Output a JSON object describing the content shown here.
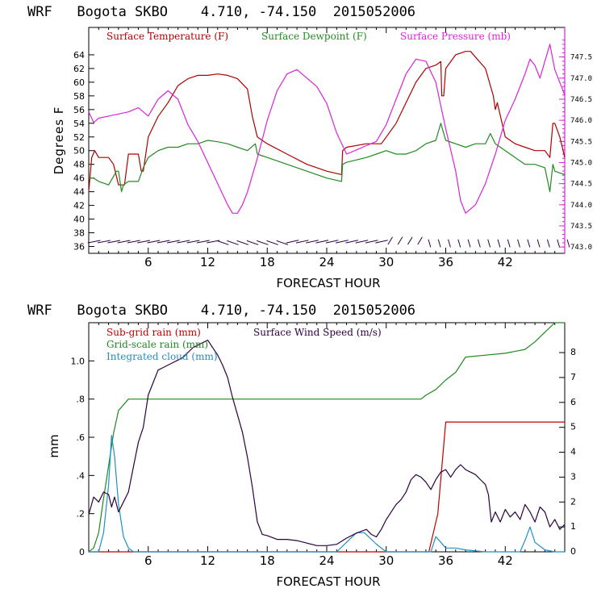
{
  "colors": {
    "temperature": "#b00000",
    "dewpoint": "#228b22",
    "pressure": "#dd22dd",
    "subgrid": "#c00000",
    "gridscale": "#1f8a1f",
    "cloud": "#1e90c8",
    "wind": "#2b0040",
    "axis": "#000000"
  },
  "chart_data": [
    {
      "type": "line",
      "header": "WRF   Bogota SKBO    4.710, -74.150  2015052006",
      "xlabel": "FORECAST HOUR",
      "ylabel": "Degrees F",
      "xlim": [
        0,
        48
      ],
      "ylim": [
        35,
        68
      ],
      "y2lim": [
        742.85,
        748.2
      ],
      "xticks": [
        6,
        12,
        18,
        24,
        30,
        36,
        42
      ],
      "yticks": [
        36,
        38,
        40,
        42,
        44,
        46,
        48,
        50,
        52,
        54,
        56,
        58,
        60,
        62,
        64
      ],
      "y2ticks": [
        "743.0",
        "743.5",
        "744.0",
        "744.5",
        "745.0",
        "745.5",
        "746.0",
        "746.5",
        "747.0",
        "747.5"
      ],
      "legend": [
        "Surface Temperature (F)",
        "Surface Dewpoint (F)",
        "Surface Pressure (mb)"
      ],
      "series": [
        {
          "name": "Surface Temperature (F)",
          "axis": "left",
          "x": [
            0,
            0.3,
            0.6,
            1,
            1.5,
            2,
            2.5,
            3,
            3.3,
            3.6,
            4,
            5,
            5.3,
            5.5,
            6,
            7,
            8,
            9,
            10,
            11,
            12,
            13,
            14,
            15,
            16,
            16.5,
            17,
            18,
            20,
            22,
            24,
            25.5,
            25.6,
            26,
            28,
            29,
            29.5,
            30,
            31,
            32,
            33,
            34,
            35,
            35.5,
            35.6,
            35.8,
            36,
            37,
            38,
            38.5,
            40,
            40.8,
            41,
            41.2,
            42,
            43,
            44,
            45,
            46,
            46.5,
            46.8,
            47,
            47.5,
            48
          ],
          "y": [
            44,
            49,
            50,
            49,
            49,
            49,
            48,
            45,
            45,
            45,
            49.5,
            49.5,
            47,
            47,
            52,
            55,
            57,
            59.5,
            60.5,
            61,
            61,
            61.2,
            61,
            60.5,
            59,
            55,
            52,
            51,
            49.5,
            48,
            47,
            46.5,
            50,
            50.5,
            51,
            51,
            51,
            52,
            54,
            57,
            60,
            62,
            62.5,
            63,
            58,
            58,
            62,
            64,
            64.5,
            64.5,
            62,
            58,
            56,
            57,
            52,
            51,
            50.5,
            50,
            50,
            49,
            54,
            54,
            52,
            49
          ]
        },
        {
          "name": "Surface Dewpoint (F)",
          "axis": "left",
          "x": [
            0,
            0.5,
            1,
            2,
            2.8,
            3,
            3.3,
            3.5,
            4,
            5,
            5.5,
            6,
            7,
            8,
            9,
            10,
            11,
            12,
            13,
            14,
            15,
            16,
            16.8,
            17,
            18,
            20,
            22,
            24,
            25.5,
            25.6,
            26,
            28,
            29,
            30,
            31,
            32,
            33,
            34,
            35,
            35.5,
            36,
            37,
            38,
            39,
            40,
            40.5,
            41,
            42,
            43,
            44,
            45,
            46,
            46.5,
            46.8,
            47,
            48
          ],
          "y": [
            46,
            46,
            45.5,
            45,
            47,
            47,
            44,
            45,
            45.5,
            45.5,
            47.5,
            49,
            50,
            50.5,
            50.5,
            51,
            51,
            51.5,
            51.3,
            51,
            50.5,
            50,
            51,
            49.5,
            49,
            48,
            47,
            46,
            45.5,
            48,
            48.3,
            49,
            49.5,
            50,
            49.5,
            49.5,
            50,
            51,
            51.5,
            54,
            51.5,
            51,
            50.5,
            51,
            51,
            52.5,
            51,
            50,
            49,
            48,
            48,
            47.5,
            44,
            48,
            47,
            46.5
          ]
        },
        {
          "name": "Surface Pressure (mb)",
          "axis": "right",
          "x": [
            0,
            0.5,
            1,
            2,
            3,
            4,
            5,
            6,
            7,
            8,
            9,
            10,
            11,
            12,
            13,
            14,
            14.5,
            15,
            15.5,
            16,
            17,
            18,
            19,
            20,
            21,
            22,
            23,
            24,
            25,
            26,
            27,
            28,
            29,
            30,
            31,
            32,
            33,
            34,
            35,
            36,
            37,
            37.5,
            38,
            39,
            40,
            41,
            42,
            43,
            44,
            44.5,
            45,
            45.5,
            46,
            46.5,
            47,
            48
          ],
          "y": [
            746.2,
            745.95,
            746.05,
            746.1,
            746.15,
            746.2,
            746.3,
            746.1,
            746.5,
            746.7,
            746.5,
            745.9,
            745.5,
            745.0,
            744.5,
            744.0,
            743.8,
            743.8,
            744.0,
            744.3,
            745.1,
            746.0,
            746.7,
            747.1,
            747.2,
            747.0,
            746.8,
            746.4,
            745.7,
            745.2,
            745.3,
            745.4,
            745.5,
            745.9,
            746.5,
            747.1,
            747.45,
            747.4,
            746.9,
            745.8,
            744.8,
            744.1,
            743.8,
            744.0,
            744.5,
            745.2,
            746.0,
            746.5,
            747.1,
            747.45,
            747.3,
            747.0,
            747.4,
            747.8,
            747.2,
            746.6
          ]
        }
      ]
    },
    {
      "type": "line",
      "header": "WRF   Bogota SKBO    4.710, -74.150  2015052006",
      "xlabel": "FORECAST HOUR",
      "ylabel": "mm",
      "xlim": [
        0,
        48
      ],
      "ylim": [
        0,
        1.2
      ],
      "y2lim": [
        0,
        9.2
      ],
      "xticks": [
        6,
        12,
        18,
        24,
        30,
        36,
        42
      ],
      "yticks": [
        0,
        0.2,
        0.4,
        0.6,
        0.8,
        1.0
      ],
      "ytick_labels": [
        "0",
        ".2",
        ".4",
        ".6",
        ".8",
        "1.0"
      ],
      "y2ticks": [
        "0",
        "1",
        "2",
        "3",
        "4",
        "5",
        "6",
        "7",
        "8"
      ],
      "legend": [
        "Sub-grid rain (mm)",
        "Grid-scale rain (mm)",
        "Integrated cloud (mm)",
        "Surface Wind Speed (m/s)"
      ],
      "series": [
        {
          "name": "Sub-grid rain (mm)",
          "axis": "left",
          "x": [
            0,
            34.3,
            35.2,
            36,
            48
          ],
          "y": [
            0,
            0,
            0.2,
            0.68,
            0.68
          ]
        },
        {
          "name": "Grid-scale rain (mm)",
          "axis": "left",
          "x": [
            0,
            0.5,
            1,
            1.5,
            2,
            2.5,
            3,
            4,
            20,
            30,
            33.5,
            34,
            35,
            36,
            37,
            38,
            40,
            42,
            44,
            45,
            46,
            47,
            48
          ],
          "y": [
            0,
            0.02,
            0.1,
            0.28,
            0.45,
            0.62,
            0.74,
            0.8,
            0.8,
            0.8,
            0.8,
            0.82,
            0.85,
            0.9,
            0.94,
            1.02,
            1.03,
            1.04,
            1.06,
            1.1,
            1.15,
            1.2,
            1.2
          ]
        },
        {
          "name": "Integrated cloud (mm)",
          "axis": "left",
          "x": [
            0,
            1,
            1.5,
            2,
            2.3,
            2.6,
            3,
            3.5,
            4,
            4.5,
            25,
            26,
            27,
            27.8,
            29,
            30,
            34.5,
            35,
            35.5,
            36,
            37,
            38,
            40,
            43.5,
            44,
            44.5,
            45,
            46,
            47,
            48
          ],
          "y": [
            0,
            0,
            0.1,
            0.35,
            0.61,
            0.5,
            0.25,
            0.08,
            0.02,
            0,
            0,
            0.05,
            0.1,
            0.1,
            0.04,
            0,
            0,
            0.08,
            0.05,
            0.02,
            0.02,
            0.01,
            0,
            0,
            0.06,
            0.13,
            0.05,
            0.01,
            0,
            0
          ]
        },
        {
          "name": "Surface Wind Speed (m/s)",
          "axis": "right",
          "x": [
            0,
            0.5,
            1,
            1.5,
            2,
            2.3,
            2.6,
            3,
            3.5,
            4,
            4.5,
            5,
            5.5,
            6,
            6.5,
            7,
            7.5,
            8,
            8.5,
            9,
            9.5,
            10,
            10.5,
            11,
            11.5,
            12,
            12.5,
            13,
            13.5,
            14,
            14.5,
            15,
            15.5,
            16,
            16.5,
            17,
            17.5,
            18,
            19,
            20,
            21,
            22,
            23,
            24,
            25,
            26,
            27,
            28,
            28.5,
            29,
            29.5,
            30,
            30.5,
            31,
            31.5,
            32,
            32.5,
            33,
            33.5,
            34,
            34.5,
            35,
            35.5,
            36,
            36.5,
            37,
            37.5,
            38,
            38.5,
            39,
            39.5,
            40,
            40.3,
            40.6,
            41,
            41.5,
            42,
            42.5,
            43,
            43.5,
            44,
            44.5,
            45,
            45.5,
            46,
            46.5,
            47,
            47.5,
            48
          ],
          "y": [
            1.5,
            2.2,
            2.0,
            2.4,
            2.3,
            1.8,
            2.2,
            1.6,
            2.0,
            2.4,
            3.4,
            4.4,
            5.0,
            6.3,
            6.8,
            7.3,
            7.4,
            7.5,
            7.6,
            7.7,
            7.8,
            8.0,
            8.2,
            8.3,
            8.4,
            8.5,
            8.2,
            7.9,
            7.5,
            7.0,
            6.2,
            5.5,
            4.8,
            3.8,
            2.6,
            1.2,
            0.7,
            0.65,
            0.5,
            0.5,
            0.45,
            0.35,
            0.25,
            0.25,
            0.3,
            0.55,
            0.75,
            0.9,
            0.7,
            0.6,
            0.9,
            1.3,
            1.6,
            1.9,
            2.1,
            2.4,
            2.9,
            3.1,
            3.0,
            2.8,
            2.5,
            2.9,
            3.2,
            3.3,
            3.0,
            3.3,
            3.5,
            3.3,
            3.2,
            3.1,
            2.9,
            2.7,
            2.3,
            1.2,
            1.6,
            1.2,
            1.7,
            1.4,
            1.6,
            1.3,
            1.9,
            1.6,
            1.2,
            1.8,
            1.6,
            1.0,
            1.3,
            0.9,
            1.1
          ]
        }
      ]
    }
  ]
}
